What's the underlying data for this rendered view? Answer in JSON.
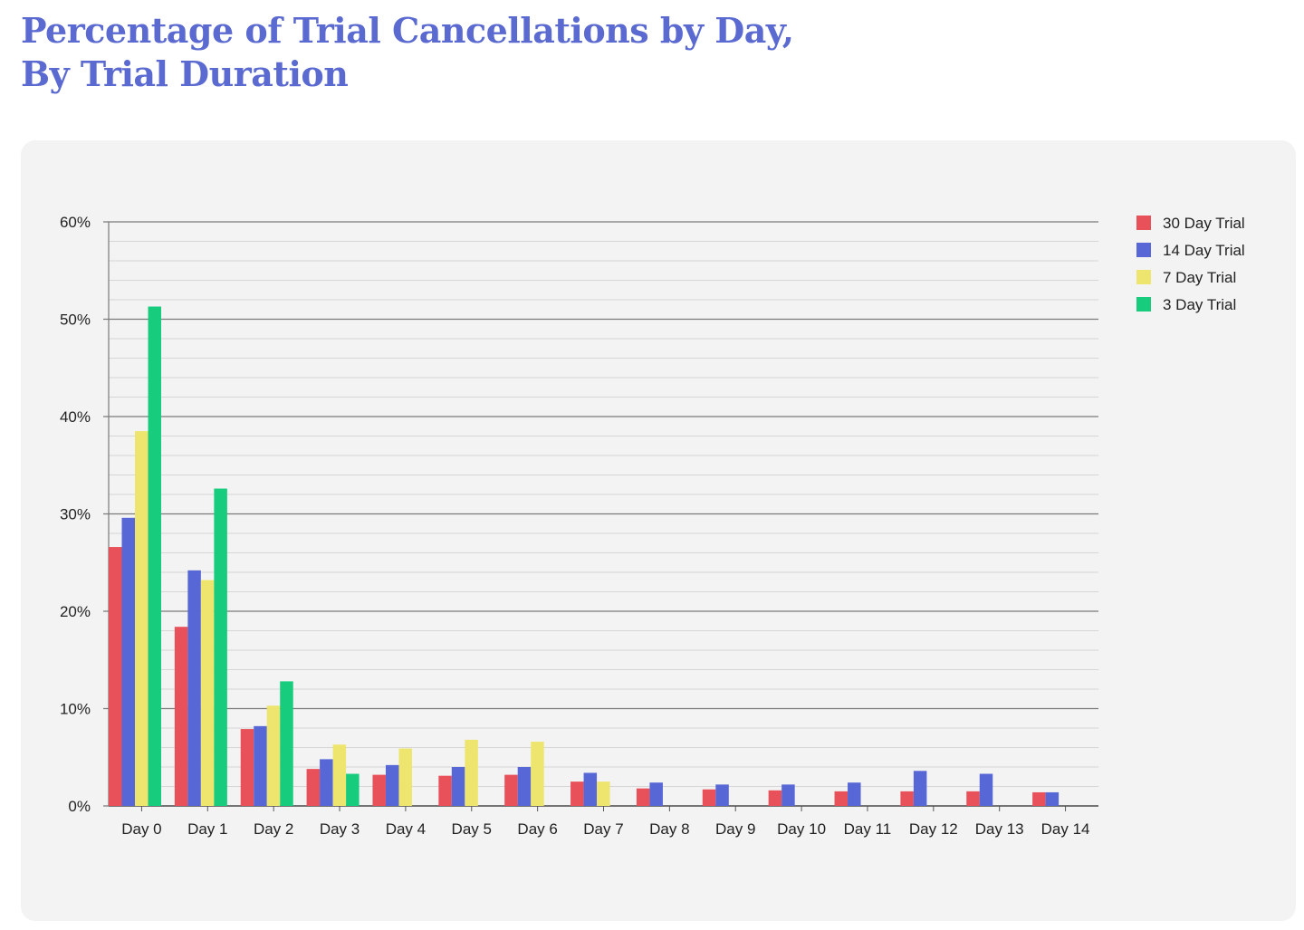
{
  "title_lines": [
    "Percentage of Trial Cancellations by Day,",
    "By Trial Duration"
  ],
  "chart_data": {
    "type": "bar",
    "categories": [
      "Day 0",
      "Day 1",
      "Day 2",
      "Day 3",
      "Day 4",
      "Day 5",
      "Day 6",
      "Day 7",
      "Day 8",
      "Day 9",
      "Day 10",
      "Day 11",
      "Day 12",
      "Day 13",
      "Day 14"
    ],
    "series": [
      {
        "name": "30 Day Trial",
        "color": "#e8515a",
        "values": [
          26.6,
          18.4,
          7.9,
          3.8,
          3.2,
          3.1,
          3.2,
          2.5,
          1.8,
          1.7,
          1.6,
          1.5,
          1.5,
          1.5,
          1.4
        ]
      },
      {
        "name": "14 Day Trial",
        "color": "#5767d6",
        "values": [
          29.6,
          24.2,
          8.2,
          4.8,
          4.2,
          4.0,
          4.0,
          3.4,
          2.4,
          2.2,
          2.2,
          2.4,
          3.6,
          3.3,
          1.4
        ]
      },
      {
        "name": "7 Day Trial",
        "color": "#eee56f",
        "values": [
          38.5,
          23.2,
          10.3,
          6.3,
          5.9,
          6.8,
          6.6,
          2.5,
          null,
          null,
          null,
          null,
          null,
          null,
          null
        ]
      },
      {
        "name": "3 Day Trial",
        "color": "#17cc7c",
        "values": [
          51.3,
          32.6,
          12.8,
          3.3,
          null,
          null,
          null,
          null,
          null,
          null,
          null,
          null,
          null,
          null,
          null
        ]
      }
    ],
    "ylim": [
      0,
      60
    ],
    "y_ticks": [
      "0%",
      "10%",
      "20%",
      "30%",
      "40%",
      "50%",
      "60%"
    ],
    "y_tick_values": [
      0,
      10,
      20,
      30,
      40,
      50,
      60
    ],
    "minor_grid_step": 2,
    "grid": true,
    "legend_position": "top-right"
  }
}
